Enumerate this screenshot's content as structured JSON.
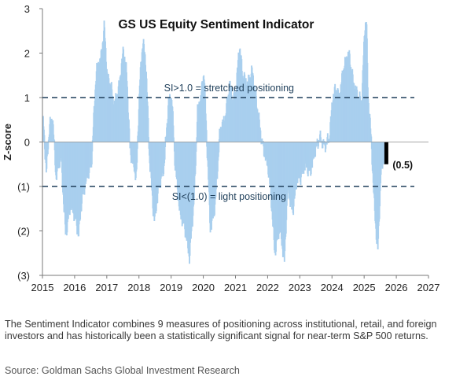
{
  "chart_data": {
    "type": "bar",
    "title": "GS US Equity Sentiment Indicator",
    "ylabel": "Z-score",
    "xlabel": "",
    "xlim": [
      2015,
      2027
    ],
    "ylim": [
      -3,
      3
    ],
    "xticks": [
      2015,
      2016,
      2017,
      2018,
      2019,
      2020,
      2021,
      2022,
      2023,
      2024,
      2025,
      2026,
      2027
    ],
    "xtick_labels": [
      "2015",
      "2016",
      "2017",
      "2018",
      "2019",
      "2020",
      "2021",
      "2022",
      "2023",
      "2024",
      "2025",
      "2026",
      "2027"
    ],
    "yticks": [
      3,
      2,
      1,
      0,
      -1,
      -2,
      -3
    ],
    "ytick_labels": [
      "3",
      "2",
      "1",
      "0",
      "(1)",
      "(2)",
      "(3)"
    ],
    "grid": false,
    "bar_color": "#a9cfee",
    "highlight_color": "#000000",
    "threshold_color": "#1f3f5a",
    "thresholds": [
      {
        "value": 1.0,
        "label": "SI>1.0 = stretched positioning"
      },
      {
        "value": -1.0,
        "label": "SI<(1.0) = light positioning"
      }
    ],
    "latest": {
      "date": 2025.69,
      "value": -0.5,
      "label": "(0.5)"
    },
    "series": [
      {
        "x": [
          2015.0,
          2015.1,
          2015.2,
          2015.3,
          2015.4,
          2015.55,
          2015.7,
          2015.85,
          2016.0,
          2016.1,
          2016.2,
          2016.35,
          2016.5,
          2016.65,
          2016.8,
          2016.9,
          2017.0,
          2017.1,
          2017.2,
          2017.35,
          2017.5,
          2017.6,
          2017.7,
          2017.8,
          2017.9,
          2018.0,
          2018.1,
          2018.2,
          2018.3,
          2018.45,
          2018.6,
          2018.75,
          2018.9,
          2019.0,
          2019.1,
          2019.25,
          2019.4,
          2019.55,
          2019.7,
          2019.8,
          2019.9,
          2020.0,
          2020.1,
          2020.2,
          2020.35,
          2020.5,
          2020.65,
          2020.8,
          2020.9,
          2021.0,
          2021.1,
          2021.2,
          2021.35,
          2021.5,
          2021.65,
          2021.8,
          2022.0,
          2022.1,
          2022.2,
          2022.35,
          2022.5,
          2022.6,
          2022.75,
          2022.9,
          2023.0,
          2023.15,
          2023.3,
          2023.45,
          2023.6,
          2023.75,
          2023.9,
          2024.0,
          2024.1,
          2024.2,
          2024.35,
          2024.5,
          2024.65,
          2024.8,
          2024.9,
          2025.0,
          2025.05,
          2025.1,
          2025.15,
          2025.2,
          2025.3,
          2025.4,
          2025.5,
          2025.6,
          2025.66
        ],
        "values": [
          0.5,
          -0.7,
          0.4,
          0.5,
          -0.8,
          -0.3,
          -2.1,
          -1.4,
          -1.7,
          -2.1,
          -1.3,
          -0.8,
          -0.5,
          1.6,
          1.9,
          2.6,
          1.4,
          1.3,
          0.8,
          1.2,
          2.1,
          1.5,
          -0.2,
          -0.5,
          -0.8,
          1.3,
          2.3,
          1.7,
          -0.3,
          -1.8,
          -1.0,
          -0.6,
          0.9,
          1.0,
          -0.5,
          -1.6,
          -1.9,
          -2.6,
          -1.2,
          0.7,
          1.0,
          1.6,
          -0.2,
          -2.0,
          -1.4,
          0.3,
          0.5,
          1.3,
          0.9,
          1.2,
          2.2,
          1.5,
          1.3,
          1.6,
          0.8,
          0.0,
          -0.6,
          -1.4,
          -2.5,
          -1.9,
          -2.7,
          -1.0,
          -1.6,
          -0.8,
          -0.8,
          -0.5,
          -0.7,
          -0.2,
          0.1,
          -0.1,
          0.1,
          1.0,
          1.2,
          1.0,
          1.7,
          2.0,
          1.3,
          1.0,
          0.9,
          2.6,
          2.8,
          1.0,
          0.6,
          0.0,
          -1.5,
          -2.5,
          -0.7,
          -0.3,
          -0.5
        ]
      }
    ]
  },
  "caption": {
    "description": "The Sentiment Indicator combines 9 measures of positioning across institutional, retail, and foreign investors and has historically been a statistically significant signal for near-term S&P 500 returns.",
    "source": "Source: Goldman Sachs Global Investment Research"
  }
}
